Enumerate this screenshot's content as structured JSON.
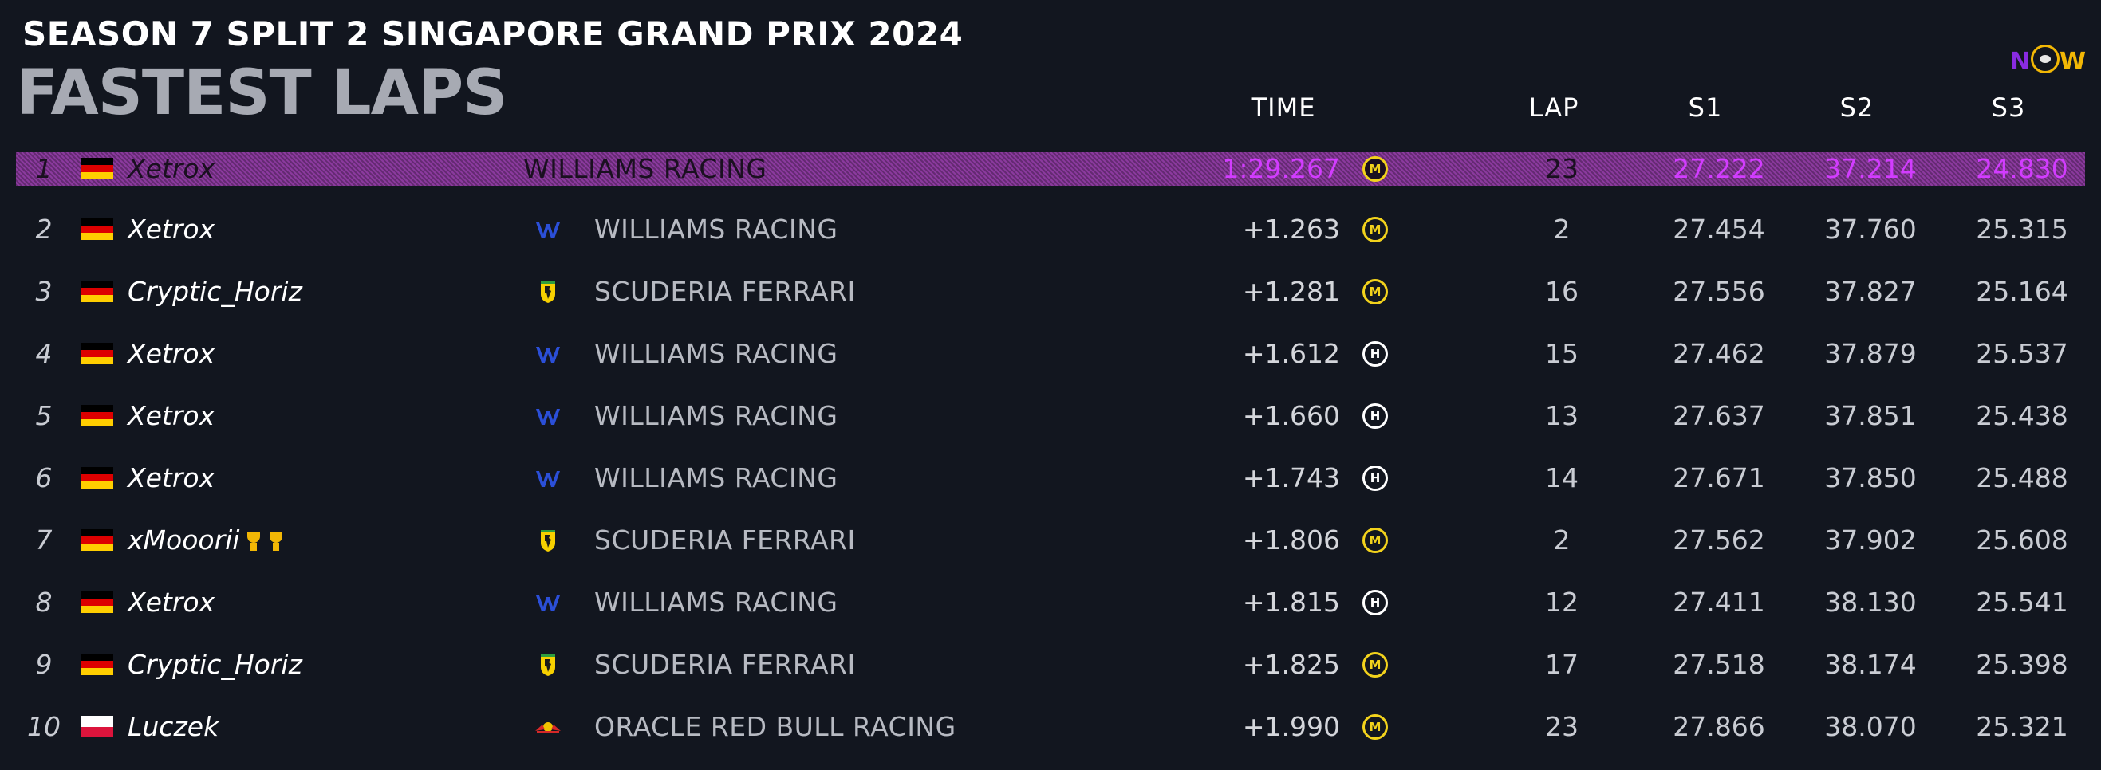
{
  "header": {
    "event_title": "SEASON 7 SPLIT 2 SINGAPORE GRAND PRIX 2024",
    "page_title": "FASTEST LAPS",
    "logo_text": "NOW"
  },
  "columns": {
    "time": "TIME",
    "lap": "LAP",
    "s1": "S1",
    "s2": "S2",
    "s3": "S3"
  },
  "colors": {
    "background": "#12161f",
    "fastest_highlight": "#8b3a9e",
    "fastest_text": "#d23cff",
    "medium_tyre": "#f2d21c",
    "hard_tyre": "#ffffff",
    "williams_icon": "#2b4fd8",
    "ferrari_icon": "#f7d000",
    "redbull_icon": "#d62828"
  },
  "rows": [
    {
      "pos": "1",
      "flag": "germany",
      "driver": "Xetrox",
      "team_icon": "williams-logo-icon",
      "team": "WILLIAMS RACING",
      "time": "1:29.267",
      "tyre": "M",
      "tyre_type": "medium",
      "lap": "23",
      "s1": "27.222",
      "s2": "37.214",
      "s3": "24.830",
      "trophies": 0
    },
    {
      "pos": "2",
      "flag": "germany",
      "driver": "Xetrox",
      "team_icon": "williams-logo-icon",
      "team": "WILLIAMS RACING",
      "time": "+1.263",
      "tyre": "M",
      "tyre_type": "medium",
      "lap": "2",
      "s1": "27.454",
      "s2": "37.760",
      "s3": "25.315",
      "trophies": 0
    },
    {
      "pos": "3",
      "flag": "germany",
      "driver": "Cryptic_Horiz",
      "team_icon": "ferrari-logo-icon",
      "team": "SCUDERIA FERRARI",
      "time": "+1.281",
      "tyre": "M",
      "tyre_type": "medium",
      "lap": "16",
      "s1": "27.556",
      "s2": "37.827",
      "s3": "25.164",
      "trophies": 0
    },
    {
      "pos": "4",
      "flag": "germany",
      "driver": "Xetrox",
      "team_icon": "williams-logo-icon",
      "team": "WILLIAMS RACING",
      "time": "+1.612",
      "tyre": "H",
      "tyre_type": "hard",
      "lap": "15",
      "s1": "27.462",
      "s2": "37.879",
      "s3": "25.537",
      "trophies": 0
    },
    {
      "pos": "5",
      "flag": "germany",
      "driver": "Xetrox",
      "team_icon": "williams-logo-icon",
      "team": "WILLIAMS RACING",
      "time": "+1.660",
      "tyre": "H",
      "tyre_type": "hard",
      "lap": "13",
      "s1": "27.637",
      "s2": "37.851",
      "s3": "25.438",
      "trophies": 0
    },
    {
      "pos": "6",
      "flag": "germany",
      "driver": "Xetrox",
      "team_icon": "williams-logo-icon",
      "team": "WILLIAMS RACING",
      "time": "+1.743",
      "tyre": "H",
      "tyre_type": "hard",
      "lap": "14",
      "s1": "27.671",
      "s2": "37.850",
      "s3": "25.488",
      "trophies": 0
    },
    {
      "pos": "7",
      "flag": "germany",
      "driver": "xMooorii",
      "team_icon": "ferrari-logo-icon",
      "team": "SCUDERIA FERRARI",
      "time": "+1.806",
      "tyre": "M",
      "tyre_type": "medium",
      "lap": "2",
      "s1": "27.562",
      "s2": "37.902",
      "s3": "25.608",
      "trophies": 2
    },
    {
      "pos": "8",
      "flag": "germany",
      "driver": "Xetrox",
      "team_icon": "williams-logo-icon",
      "team": "WILLIAMS RACING",
      "time": "+1.815",
      "tyre": "H",
      "tyre_type": "hard",
      "lap": "12",
      "s1": "27.411",
      "s2": "38.130",
      "s3": "25.541",
      "trophies": 0
    },
    {
      "pos": "9",
      "flag": "germany",
      "driver": "Cryptic_Horiz",
      "team_icon": "ferrari-logo-icon",
      "team": "SCUDERIA FERRARI",
      "time": "+1.825",
      "tyre": "M",
      "tyre_type": "medium",
      "lap": "17",
      "s1": "27.518",
      "s2": "38.174",
      "s3": "25.398",
      "trophies": 0
    },
    {
      "pos": "10",
      "flag": "poland",
      "driver": "Luczek",
      "team_icon": "redbull-logo-icon",
      "team": "ORACLE RED BULL RACING",
      "time": "+1.990",
      "tyre": "M",
      "tyre_type": "medium",
      "lap": "23",
      "s1": "27.866",
      "s2": "38.070",
      "s3": "25.321",
      "trophies": 0
    }
  ]
}
